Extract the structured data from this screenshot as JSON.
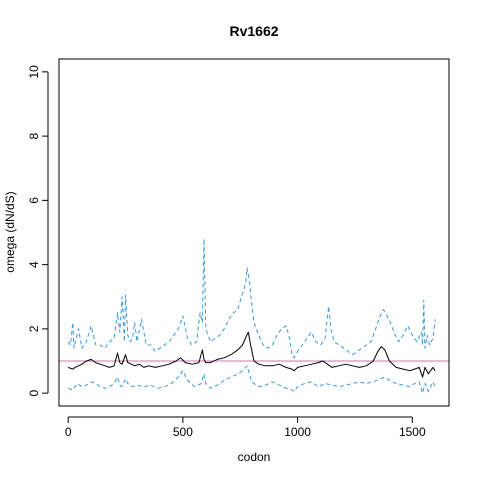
{
  "chart_data": {
    "type": "line",
    "title": "Rv1662",
    "xlabel": "codon",
    "ylabel": "omega (dN/dS)",
    "xlim": [
      -40,
      1660
    ],
    "ylim": [
      -0.4,
      10.4
    ],
    "x_ticks": [
      0,
      500,
      1000,
      1500
    ],
    "y_ticks": [
      0,
      2,
      4,
      6,
      8,
      10
    ],
    "reference_line": {
      "y": 1,
      "color": "#cc79a7"
    },
    "colors": {
      "omega": "#000000",
      "ci": "#3a9ad9"
    },
    "series": [
      {
        "style": "solid",
        "x": [
          0,
          20,
          30,
          45,
          60,
          80,
          100,
          120,
          140,
          160,
          180,
          200,
          215,
          225,
          235,
          250,
          260,
          275,
          290,
          310,
          330,
          350,
          380,
          410,
          440,
          470,
          490,
          510,
          540,
          570,
          585,
          592,
          600,
          620,
          650,
          680,
          710,
          740,
          760,
          775,
          785,
          795,
          810,
          830,
          860,
          890,
          920,
          950,
          975,
          985,
          1000,
          1030,
          1060,
          1090,
          1110,
          1130,
          1150,
          1180,
          1210,
          1240,
          1270,
          1300,
          1330,
          1350,
          1365,
          1380,
          1400,
          1430,
          1460,
          1490,
          1510,
          1530,
          1545,
          1555,
          1570,
          1590,
          1600
        ],
        "values": [
          0.8,
          0.75,
          0.8,
          0.85,
          0.9,
          1.0,
          1.05,
          0.95,
          0.9,
          0.85,
          0.8,
          0.85,
          1.25,
          0.95,
          0.9,
          1.2,
          0.95,
          0.9,
          0.85,
          0.9,
          0.8,
          0.85,
          0.8,
          0.85,
          0.9,
          1.0,
          1.1,
          0.95,
          0.9,
          0.95,
          1.35,
          1.05,
          0.95,
          0.95,
          1.05,
          1.1,
          1.2,
          1.35,
          1.5,
          1.75,
          1.9,
          1.5,
          1.0,
          0.9,
          0.85,
          0.85,
          0.9,
          0.8,
          0.75,
          0.7,
          0.8,
          0.85,
          0.9,
          0.95,
          1.0,
          0.9,
          0.8,
          0.85,
          0.9,
          0.85,
          0.8,
          0.85,
          1.0,
          1.3,
          1.45,
          1.35,
          1.0,
          0.8,
          0.75,
          0.7,
          0.75,
          0.8,
          0.5,
          0.8,
          0.6,
          0.8,
          0.7
        ]
      },
      {
        "style": "dashed",
        "x": [
          0,
          10,
          20,
          25,
          35,
          45,
          60,
          80,
          100,
          120,
          140,
          160,
          180,
          200,
          215,
          225,
          235,
          245,
          250,
          260,
          270,
          280,
          290,
          300,
          320,
          340,
          360,
          380,
          400,
          420,
          440,
          460,
          480,
          500,
          520,
          540,
          560,
          575,
          585,
          592,
          600,
          620,
          640,
          660,
          680,
          700,
          720,
          740,
          755,
          765,
          775,
          780,
          790,
          800,
          810,
          830,
          850,
          870,
          890,
          910,
          930,
          950,
          965,
          975,
          985,
          1000,
          1020,
          1040,
          1060,
          1080,
          1100,
          1120,
          1135,
          1145,
          1160,
          1180,
          1200,
          1220,
          1240,
          1260,
          1280,
          1300,
          1320,
          1340,
          1360,
          1375,
          1390,
          1405,
          1420,
          1440,
          1460,
          1480,
          1500,
          1520,
          1540,
          1545,
          1550,
          1555,
          1565,
          1575,
          1590,
          1600
        ],
        "values": [
          1.6,
          1.5,
          2.2,
          1.4,
          1.7,
          2.0,
          1.4,
          1.6,
          2.1,
          1.5,
          1.5,
          1.4,
          1.6,
          1.7,
          2.5,
          1.9,
          3.0,
          1.6,
          3.05,
          1.8,
          1.6,
          1.7,
          2.2,
          1.6,
          2.3,
          1.5,
          1.5,
          1.3,
          1.4,
          1.5,
          1.6,
          1.8,
          2.0,
          2.4,
          1.7,
          1.5,
          1.6,
          2.5,
          2.2,
          4.8,
          2.0,
          1.6,
          1.7,
          1.8,
          2.0,
          2.3,
          2.5,
          2.6,
          3.0,
          3.2,
          3.5,
          3.9,
          3.5,
          2.8,
          2.2,
          1.8,
          1.5,
          1.4,
          1.5,
          1.8,
          2.0,
          2.1,
          1.7,
          1.2,
          1.1,
          1.3,
          1.5,
          1.7,
          1.9,
          1.6,
          1.5,
          1.7,
          2.7,
          2.0,
          1.6,
          1.5,
          1.4,
          1.3,
          1.2,
          1.3,
          1.4,
          1.5,
          1.6,
          2.0,
          2.4,
          2.6,
          2.4,
          2.2,
          1.9,
          1.6,
          1.8,
          2.1,
          1.8,
          1.6,
          1.9,
          1.5,
          2.9,
          1.4,
          1.8,
          1.5,
          1.7,
          2.3
        ]
      },
      {
        "style": "dashed",
        "x": [
          0,
          20,
          40,
          60,
          80,
          100,
          120,
          140,
          160,
          180,
          200,
          215,
          225,
          235,
          250,
          260,
          280,
          300,
          330,
          360,
          390,
          420,
          450,
          480,
          500,
          520,
          550,
          580,
          592,
          600,
          620,
          650,
          680,
          710,
          740,
          760,
          780,
          790,
          800,
          830,
          860,
          890,
          920,
          950,
          975,
          985,
          1000,
          1030,
          1060,
          1090,
          1120,
          1150,
          1180,
          1210,
          1240,
          1270,
          1300,
          1330,
          1360,
          1380,
          1400,
          1430,
          1460,
          1490,
          1510,
          1530,
          1545,
          1555,
          1570,
          1590,
          1600
        ],
        "values": [
          0.15,
          0.1,
          0.3,
          0.2,
          0.25,
          0.35,
          0.3,
          0.2,
          0.15,
          0.2,
          0.3,
          0.5,
          0.25,
          0.2,
          0.45,
          0.3,
          0.2,
          0.25,
          0.2,
          0.25,
          0.15,
          0.2,
          0.3,
          0.5,
          0.7,
          0.4,
          0.2,
          0.3,
          0.6,
          0.3,
          0.15,
          0.25,
          0.4,
          0.5,
          0.6,
          0.7,
          0.85,
          0.6,
          0.35,
          0.2,
          0.25,
          0.35,
          0.25,
          0.15,
          0.1,
          0.05,
          0.2,
          0.3,
          0.35,
          0.2,
          0.3,
          0.25,
          0.2,
          0.25,
          0.3,
          0.35,
          0.3,
          0.35,
          0.45,
          0.5,
          0.4,
          0.3,
          0.25,
          0.2,
          0.3,
          0.35,
          0.0,
          0.3,
          0.05,
          0.35,
          0.2
        ]
      }
    ]
  }
}
